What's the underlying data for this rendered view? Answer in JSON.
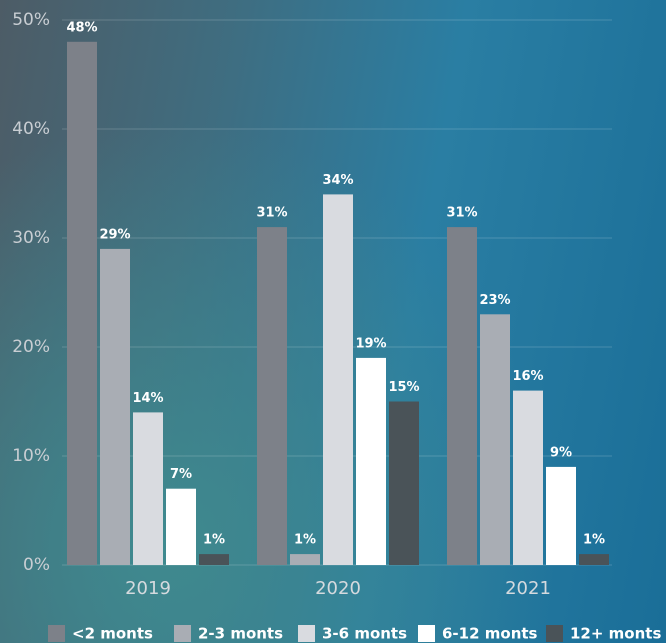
{
  "chart_data": {
    "type": "bar",
    "categories": [
      "2019",
      "2020",
      "2021"
    ],
    "series": [
      {
        "name": "<2 monts",
        "color": "#7d8189",
        "values": [
          48,
          31,
          31
        ],
        "value_labels": [
          "48%",
          "31%",
          "31%"
        ]
      },
      {
        "name": "2-3 monts",
        "color": "#a9adb4",
        "values": [
          29,
          1,
          23
        ],
        "value_labels": [
          "29%",
          "1%",
          "23%"
        ]
      },
      {
        "name": "3-6 monts",
        "color": "#d9dbe0",
        "values": [
          14,
          34,
          16
        ],
        "value_labels": [
          "14%",
          "34%",
          "16%"
        ]
      },
      {
        "name": "6-12 monts",
        "color": "#ffffff",
        "values": [
          7,
          19,
          9
        ],
        "value_labels": [
          "7%",
          "19%",
          "9%"
        ]
      },
      {
        "name": "12+ monts",
        "color": "#4a5358",
        "values": [
          1,
          15,
          1
        ],
        "value_labels": [
          "1%",
          "15%",
          "1%"
        ]
      }
    ],
    "ylim": [
      0,
      50
    ],
    "yticks": [
      {
        "value": 0,
        "label": "0%"
      },
      {
        "value": 10,
        "label": "10%"
      },
      {
        "value": 20,
        "label": "20%"
      },
      {
        "value": 30,
        "label": "30%"
      },
      {
        "value": 40,
        "label": "40%"
      },
      {
        "value": 50,
        "label": "50%"
      }
    ],
    "grid": true,
    "legend": "bottom"
  }
}
